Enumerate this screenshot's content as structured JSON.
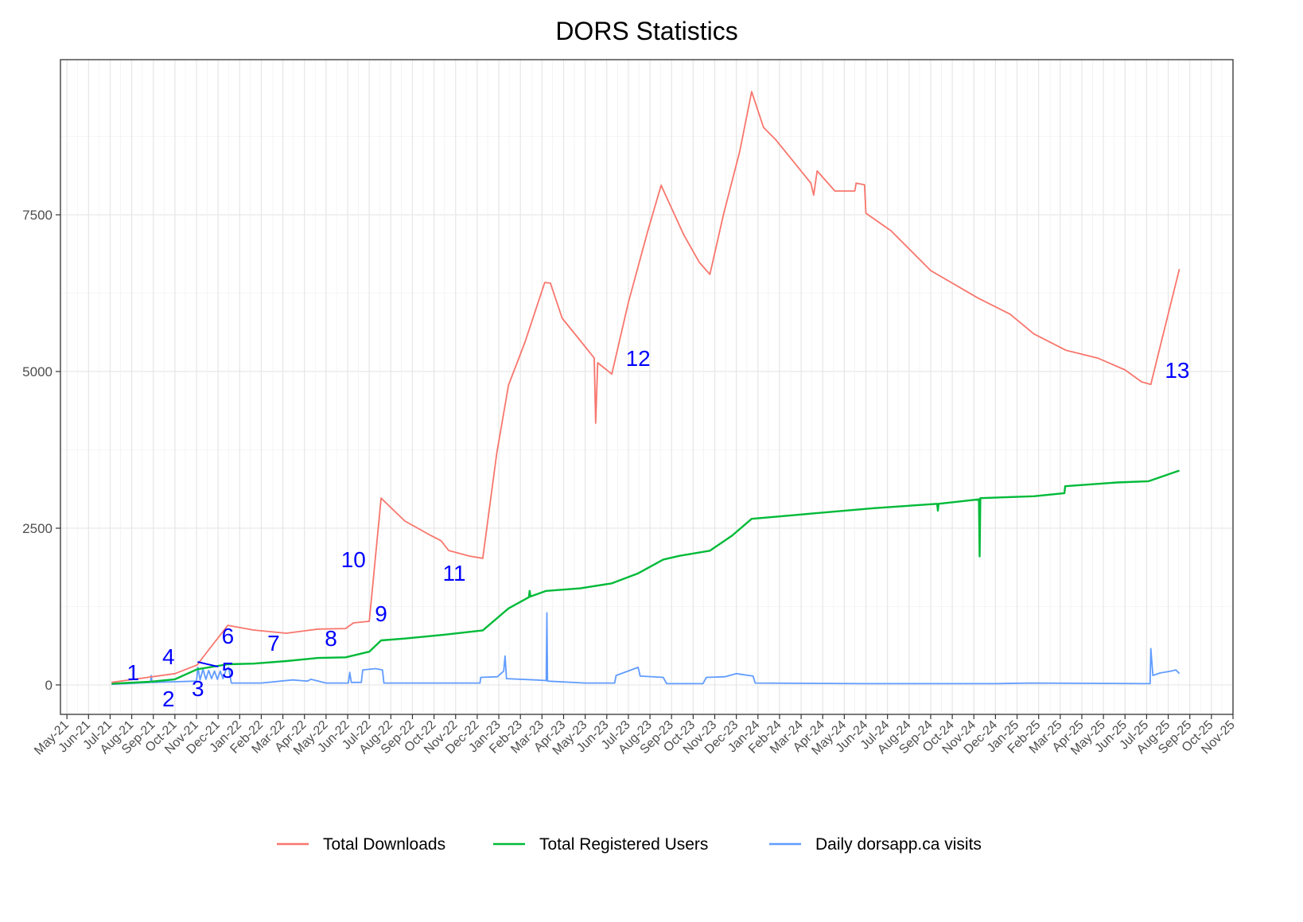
{
  "chart_data": {
    "type": "line",
    "title": "DORS Statistics",
    "xlabel": "",
    "ylabel": "",
    "xlim": [
      "2021-04-22",
      "2025-11-01"
    ],
    "ylim": [
      -470,
      9975
    ],
    "grid": true,
    "legend_position": "bottom",
    "y_ticks": [
      0,
      2500,
      5000,
      7500
    ],
    "y_tick_labels": [
      "0",
      "2500",
      "5000",
      "7500"
    ],
    "x_tick_labels": [
      "May-21",
      "Jun-21",
      "Jul-21",
      "Aug-21",
      "Sep-21",
      "Oct-21",
      "Nov-21",
      "Dec-21",
      "Jan-22",
      "Feb-22",
      "Mar-22",
      "Apr-22",
      "May-22",
      "Jun-22",
      "Jul-22",
      "Aug-22",
      "Sep-22",
      "Oct-22",
      "Nov-22",
      "Dec-22",
      "Jan-23",
      "Feb-23",
      "Mar-23",
      "Apr-23",
      "May-23",
      "Jun-23",
      "Jul-23",
      "Aug-23",
      "Sep-23",
      "Oct-23",
      "Nov-23",
      "Dec-23",
      "Jan-24",
      "Feb-24",
      "Mar-24",
      "Apr-24",
      "May-24",
      "Jun-24",
      "Jul-24",
      "Aug-24",
      "Sep-24",
      "Oct-24",
      "Nov-24",
      "Dec-24",
      "Jan-25",
      "Feb-25",
      "Mar-25",
      "Apr-25",
      "May-25",
      "Jun-25",
      "Jul-25",
      "Aug-25",
      "Sep-25",
      "Oct-25",
      "Nov-25"
    ],
    "series": [
      {
        "name": "Total Downloads",
        "color": "#F8766D",
        "points": [
          [
            "2021-07-03",
            40
          ],
          [
            "2021-08-28",
            127
          ],
          [
            "2021-10-01",
            180
          ],
          [
            "2021-11-02",
            320
          ],
          [
            "2021-11-17",
            545
          ],
          [
            "2021-12-15",
            950
          ],
          [
            "2022-01-21",
            875
          ],
          [
            "2022-03-06",
            825
          ],
          [
            "2022-04-20",
            890
          ],
          [
            "2022-05-29",
            900
          ],
          [
            "2022-06-09",
            990
          ],
          [
            "2022-07-01",
            1015
          ],
          [
            "2022-07-18",
            2980
          ],
          [
            "2022-08-21",
            2615
          ],
          [
            "2022-09-24",
            2400
          ],
          [
            "2022-10-11",
            2300
          ],
          [
            "2022-10-22",
            2145
          ],
          [
            "2022-11-20",
            2055
          ],
          [
            "2022-12-09",
            2020
          ],
          [
            "2022-12-29",
            3690
          ],
          [
            "2023-01-15",
            4785
          ],
          [
            "2023-02-07",
            5470
          ],
          [
            "2023-03-05",
            6420
          ],
          [
            "2023-03-13",
            6410
          ],
          [
            "2023-03-30",
            5850
          ],
          [
            "2023-04-24",
            5495
          ],
          [
            "2023-05-14",
            5215
          ],
          [
            "2023-05-16",
            4175
          ],
          [
            "2023-05-19",
            5140
          ],
          [
            "2023-06-08",
            4960
          ],
          [
            "2023-07-01",
            6100
          ],
          [
            "2023-07-29",
            7245
          ],
          [
            "2023-08-17",
            7970
          ],
          [
            "2023-09-18",
            7180
          ],
          [
            "2023-10-10",
            6740
          ],
          [
            "2023-10-25",
            6550
          ],
          [
            "2023-11-13",
            7500
          ],
          [
            "2023-12-06",
            8515
          ],
          [
            "2023-12-23",
            9465
          ],
          [
            "2024-01-09",
            8895
          ],
          [
            "2024-01-26",
            8705
          ],
          [
            "2024-02-17",
            8390
          ],
          [
            "2024-03-15",
            8005
          ],
          [
            "2024-03-19",
            7815
          ],
          [
            "2024-03-24",
            8200
          ],
          [
            "2024-04-18",
            7880
          ],
          [
            "2024-05-16",
            7880
          ],
          [
            "2024-05-18",
            8005
          ],
          [
            "2024-05-30",
            7980
          ],
          [
            "2024-06-01",
            7525
          ],
          [
            "2024-07-06",
            7245
          ],
          [
            "2024-09-01",
            6610
          ],
          [
            "2024-11-07",
            6170
          ],
          [
            "2024-12-22",
            5915
          ],
          [
            "2025-01-25",
            5600
          ],
          [
            "2025-03-09",
            5340
          ],
          [
            "2025-04-23",
            5215
          ],
          [
            "2025-06-01",
            5025
          ],
          [
            "2025-06-24",
            4835
          ],
          [
            "2025-07-07",
            4795
          ],
          [
            "2025-07-22",
            5470
          ],
          [
            "2025-08-17",
            6635
          ]
        ]
      },
      {
        "name": "Total Registered Users",
        "color": "#00BA38",
        "points": [
          [
            "2021-07-03",
            20
          ],
          [
            "2021-08-28",
            50
          ],
          [
            "2021-10-01",
            90
          ],
          [
            "2021-11-02",
            250
          ],
          [
            "2021-12-15",
            330
          ],
          [
            "2022-01-21",
            340
          ],
          [
            "2022-03-06",
            380
          ],
          [
            "2022-04-20",
            430
          ],
          [
            "2022-05-29",
            440
          ],
          [
            "2022-07-01",
            530
          ],
          [
            "2022-07-18",
            710
          ],
          [
            "2022-08-21",
            740
          ],
          [
            "2022-10-15",
            800
          ],
          [
            "2022-12-09",
            870
          ],
          [
            "2023-01-15",
            1220
          ],
          [
            "2023-02-12",
            1400
          ],
          [
            "2023-02-13",
            1500
          ],
          [
            "2023-02-14",
            1410
          ],
          [
            "2023-03-07",
            1500
          ],
          [
            "2023-04-24",
            1540
          ],
          [
            "2023-06-08",
            1620
          ],
          [
            "2023-07-15",
            1780
          ],
          [
            "2023-08-20",
            2000
          ],
          [
            "2023-09-12",
            2060
          ],
          [
            "2023-10-25",
            2140
          ],
          [
            "2023-11-25",
            2380
          ],
          [
            "2023-12-23",
            2650
          ],
          [
            "2024-02-22",
            2710
          ],
          [
            "2024-06-12",
            2820
          ],
          [
            "2024-09-10",
            2890
          ],
          [
            "2024-09-11",
            2780
          ],
          [
            "2024-09-12",
            2890
          ],
          [
            "2024-11-08",
            2960
          ],
          [
            "2024-11-09",
            2050
          ],
          [
            "2024-11-10",
            2980
          ],
          [
            "2025-01-25",
            3010
          ],
          [
            "2025-03-07",
            3060
          ],
          [
            "2025-03-08",
            3170
          ],
          [
            "2025-05-20",
            3230
          ],
          [
            "2025-07-04",
            3250
          ],
          [
            "2025-08-17",
            3420
          ]
        ]
      },
      {
        "name": "Daily dorsapp.ca visits",
        "color": "#619CFF",
        "points": [
          [
            "2021-07-03",
            10
          ],
          [
            "2021-08-10",
            30
          ],
          [
            "2021-08-28",
            40
          ],
          [
            "2021-08-29",
            150
          ],
          [
            "2021-08-30",
            40
          ],
          [
            "2021-10-01",
            50
          ],
          [
            "2021-11-01",
            60
          ],
          [
            "2021-11-03",
            280
          ],
          [
            "2021-11-06",
            80
          ],
          [
            "2021-11-10",
            250
          ],
          [
            "2021-11-14",
            90
          ],
          [
            "2021-11-18",
            230
          ],
          [
            "2021-11-22",
            100
          ],
          [
            "2021-11-26",
            220
          ],
          [
            "2021-11-30",
            90
          ],
          [
            "2021-12-04",
            220
          ],
          [
            "2021-12-08",
            100
          ],
          [
            "2021-12-12",
            230
          ],
          [
            "2021-12-16",
            280
          ],
          [
            "2021-12-20",
            30
          ],
          [
            "2022-02-01",
            30
          ],
          [
            "2022-03-15",
            80
          ],
          [
            "2022-04-05",
            60
          ],
          [
            "2022-04-10",
            90
          ],
          [
            "2022-05-01",
            30
          ],
          [
            "2022-06-02",
            30
          ],
          [
            "2022-06-04",
            200
          ],
          [
            "2022-06-06",
            40
          ],
          [
            "2022-06-20",
            40
          ],
          [
            "2022-06-22",
            240
          ],
          [
            "2022-07-10",
            260
          ],
          [
            "2022-07-20",
            240
          ],
          [
            "2022-07-22",
            30
          ],
          [
            "2022-11-01",
            30
          ],
          [
            "2022-12-05",
            30
          ],
          [
            "2022-12-06",
            120
          ],
          [
            "2022-12-30",
            130
          ],
          [
            "2023-01-08",
            220
          ],
          [
            "2023-01-10",
            460
          ],
          [
            "2023-01-12",
            100
          ],
          [
            "2023-02-20",
            80
          ],
          [
            "2023-03-07",
            70
          ],
          [
            "2023-03-08",
            1150
          ],
          [
            "2023-03-09",
            60
          ],
          [
            "2023-05-01",
            30
          ],
          [
            "2023-06-12",
            30
          ],
          [
            "2023-06-14",
            150
          ],
          [
            "2023-07-15",
            280
          ],
          [
            "2023-07-18",
            140
          ],
          [
            "2023-08-20",
            120
          ],
          [
            "2023-08-25",
            20
          ],
          [
            "2023-10-15",
            20
          ],
          [
            "2023-10-20",
            120
          ],
          [
            "2023-11-15",
            130
          ],
          [
            "2023-12-01",
            180
          ],
          [
            "2023-12-25",
            140
          ],
          [
            "2023-12-28",
            30
          ],
          [
            "2024-06-01",
            20
          ],
          [
            "2024-12-01",
            20
          ],
          [
            "2025-01-20",
            30
          ],
          [
            "2025-07-06",
            20
          ],
          [
            "2025-07-07",
            580
          ],
          [
            "2025-07-10",
            150
          ],
          [
            "2025-07-20",
            190
          ],
          [
            "2025-08-05",
            220
          ],
          [
            "2025-08-12",
            240
          ],
          [
            "2025-08-17",
            180
          ]
        ]
      }
    ],
    "annotations": [
      {
        "label": "1",
        "x": "2021-08-03",
        "y": 200
      },
      {
        "label": "2",
        "x": "2021-09-22",
        "y": -215
      },
      {
        "label": "3",
        "x": "2021-11-03",
        "y": -50
      },
      {
        "label": "4",
        "x": "2021-09-22",
        "y": 455
      },
      {
        "label": "5",
        "x": "2021-12-15",
        "y": 240
      },
      {
        "label": "6",
        "x": "2021-12-15",
        "y": 785
      },
      {
        "label": "7",
        "x": "2022-02-17",
        "y": 670
      },
      {
        "label": "8",
        "x": "2022-05-08",
        "y": 750
      },
      {
        "label": "9",
        "x": "2022-07-18",
        "y": 1140
      },
      {
        "label": "10",
        "x": "2022-06-09",
        "y": 2005
      },
      {
        "label": "11",
        "x": "2022-10-30",
        "y": 1790
      },
      {
        "label": "12",
        "x": "2023-07-15",
        "y": 5215
      },
      {
        "label": "13",
        "x": "2025-08-14",
        "y": 5025
      }
    ],
    "annotation_color": "#0000FF"
  }
}
